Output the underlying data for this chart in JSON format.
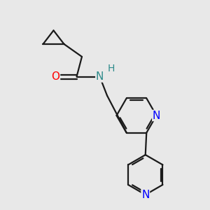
{
  "bg_color": "#e8e8e8",
  "bond_color": "#1a1a1a",
  "O_color": "#ff0000",
  "N_color": "#0000ff",
  "NH_color": "#2e8b8b",
  "line_width": 1.6,
  "font_size_atom": 11,
  "fig_size": [
    3.0,
    3.0
  ],
  "dpi": 100,
  "xlim": [
    0,
    10
  ],
  "ylim": [
    0,
    10
  ]
}
